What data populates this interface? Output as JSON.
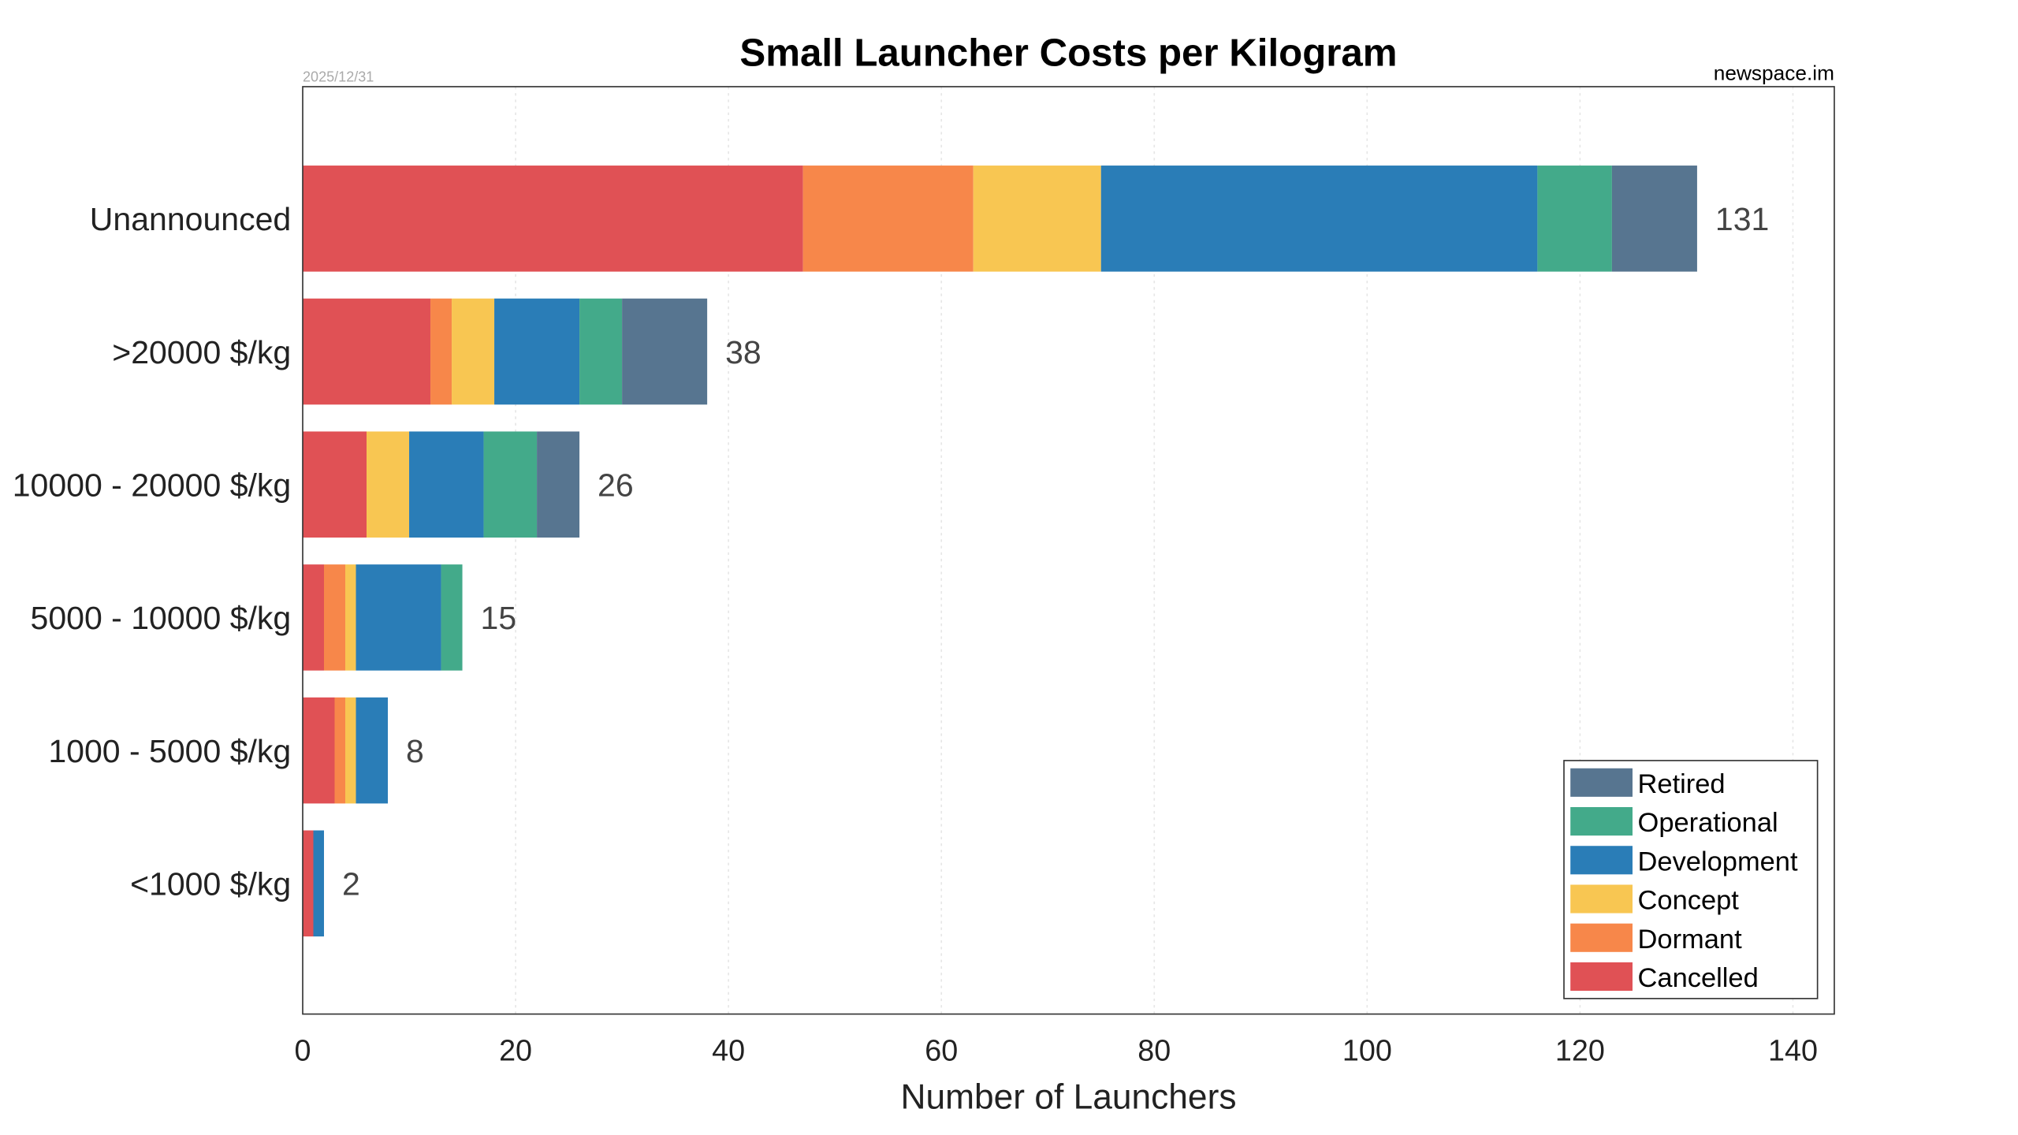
{
  "chart_data": {
    "type": "bar",
    "orientation": "horizontal",
    "stacked": true,
    "title": "Small Launcher Costs per Kilogram",
    "date": "2025/12/31",
    "source": "newspace.im",
    "xlabel": "Number of Launchers",
    "ylabel": "",
    "xlim": [
      0,
      140
    ],
    "xticks": [
      0,
      20,
      40,
      60,
      80,
      100,
      120,
      140
    ],
    "grid": true,
    "legend_position": "bottom-right",
    "categories": [
      "Unannounced",
      ">20000 $/kg",
      "10000 - 20000 $/kg",
      "5000 - 10000 $/kg",
      "1000 - 5000 $/kg",
      "<1000 $/kg"
    ],
    "totals": [
      131,
      38,
      26,
      15,
      8,
      2
    ],
    "series": [
      {
        "name": "Cancelled",
        "color": "#e05155",
        "values": [
          47,
          12,
          6,
          2,
          3,
          1
        ]
      },
      {
        "name": "Dormant",
        "color": "#f7874a",
        "values": [
          16,
          2,
          0,
          2,
          1,
          0
        ]
      },
      {
        "name": "Concept",
        "color": "#f8c652",
        "values": [
          12,
          4,
          4,
          1,
          1,
          0
        ]
      },
      {
        "name": "Development",
        "color": "#2a7db7",
        "values": [
          41,
          8,
          7,
          8,
          3,
          1
        ]
      },
      {
        "name": "Operational",
        "color": "#43aa8a",
        "values": [
          7,
          4,
          5,
          2,
          0,
          0
        ]
      },
      {
        "name": "Retired",
        "color": "#577590",
        "values": [
          8,
          8,
          4,
          0,
          0,
          0
        ]
      }
    ]
  }
}
